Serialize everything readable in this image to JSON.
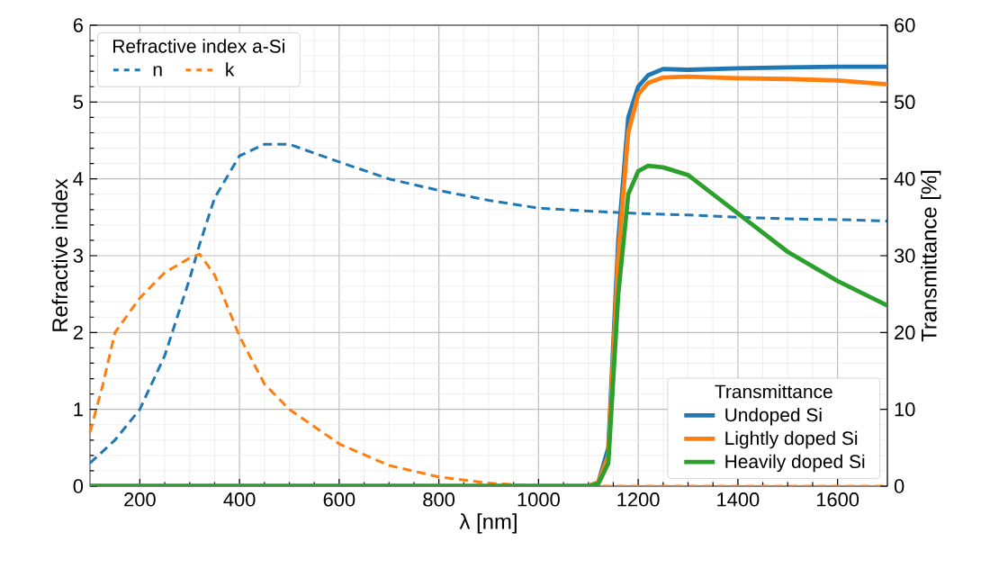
{
  "chart_data": {
    "type": "line",
    "xlabel": "λ [nm]",
    "ylabel": "Refractive index",
    "y2label": "Transmittance [%]",
    "legend_title": "Transmittance",
    "annotations": [
      "Refractive index a-Si"
    ],
    "xlim": [
      100,
      1700
    ],
    "xticks": [
      200,
      400,
      600,
      800,
      1000,
      1200,
      1400,
      1600
    ],
    "ylim": [
      0,
      6
    ],
    "yticks": [
      0,
      1,
      2,
      3,
      4,
      5,
      6
    ],
    "y2lim": [
      0,
      60
    ],
    "y2ticks": [
      0,
      10,
      20,
      30,
      40,
      50,
      60
    ],
    "grid": true,
    "legend": "bottom right",
    "series": [
      {
        "name": "n",
        "color": "#1f77b4",
        "line_style": "dashed",
        "x": [
          100,
          150,
          200,
          250,
          300,
          320,
          350,
          400,
          450,
          500,
          600,
          700,
          800,
          900,
          1000,
          1100,
          1200,
          1300,
          1400,
          1500,
          1600,
          1700
        ],
        "values": [
          0.3,
          0.6,
          1.0,
          1.7,
          2.7,
          3.15,
          3.75,
          4.3,
          4.45,
          4.45,
          4.22,
          4.0,
          3.85,
          3.72,
          3.62,
          3.58,
          3.55,
          3.53,
          3.5,
          3.48,
          3.47,
          3.45
        ]
      },
      {
        "name": "k",
        "color": "#ff7f0e",
        "line_style": "dashed",
        "x": [
          100,
          125,
          150,
          200,
          250,
          300,
          320,
          350,
          400,
          450,
          500,
          600,
          700,
          800,
          900,
          1000,
          1100,
          1200,
          1300,
          1400,
          1500,
          1600,
          1700
        ],
        "values": [
          0.7,
          1.3,
          2.0,
          2.45,
          2.78,
          2.97,
          3.02,
          2.75,
          1.95,
          1.33,
          1.0,
          0.55,
          0.27,
          0.12,
          0.04,
          0,
          0,
          0,
          0,
          0,
          0,
          0,
          0
        ]
      },
      {
        "name": "Undoped Si",
        "color": "#1f77b4",
        "line_style": "solid",
        "axis": "y2",
        "x": [
          100,
          1000,
          1100,
          1120,
          1140,
          1160,
          1180,
          1200,
          1220,
          1250,
          1300,
          1400,
          1500,
          1600,
          1700
        ],
        "values": [
          0,
          0,
          0,
          0.5,
          5,
          32,
          48,
          52,
          53.5,
          54.3,
          54.2,
          54.4,
          54.5,
          54.6,
          54.6
        ]
      },
      {
        "name": "Lightly doped Si",
        "color": "#ff7f0e",
        "line_style": "solid",
        "axis": "y2",
        "x": [
          100,
          1000,
          1100,
          1120,
          1140,
          1160,
          1180,
          1200,
          1220,
          1250,
          1300,
          1400,
          1500,
          1600,
          1700
        ],
        "values": [
          0,
          0,
          0,
          0.5,
          4,
          30,
          46,
          51,
          52.5,
          53.2,
          53.3,
          53.1,
          53.0,
          52.8,
          52.3
        ]
      },
      {
        "name": "Heavily doped Si",
        "color": "#2ca02c",
        "line_style": "solid",
        "axis": "y2",
        "x": [
          100,
          1000,
          1100,
          1120,
          1140,
          1160,
          1180,
          1200,
          1220,
          1250,
          1300,
          1400,
          1500,
          1600,
          1700
        ],
        "values": [
          0,
          0,
          0,
          0.3,
          3,
          25,
          38,
          41,
          41.7,
          41.5,
          40.5,
          35.5,
          30.5,
          26.7,
          23.5
        ]
      }
    ]
  }
}
